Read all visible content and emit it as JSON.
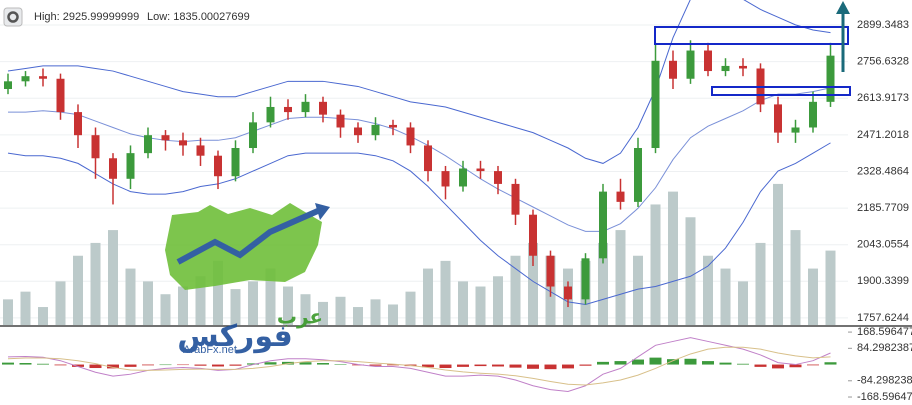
{
  "chart_data": [
    {
      "type": "candlestick",
      "annotations": [
        "High: 2925.99999999",
        "Low: 1835.00027699"
      ],
      "open": [
        2650,
        2680,
        2700,
        2690,
        2560,
        2470,
        2380,
        2300,
        2400,
        2470,
        2450,
        2430,
        2390,
        2310,
        2420,
        2520,
        2580,
        2560,
        2600,
        2550,
        2500,
        2470,
        2510,
        2500,
        2430,
        2330,
        2270,
        2340,
        2330,
        2280,
        2160,
        2000,
        1880,
        1830,
        1990,
        2250,
        2210,
        2420,
        2760,
        2690,
        2800,
        2720,
        2740,
        2730,
        2590,
        2480,
        2500,
        2600
      ],
      "high": [
        2710,
        2720,
        2730,
        2710,
        2590,
        2500,
        2400,
        2430,
        2500,
        2490,
        2480,
        2460,
        2410,
        2450,
        2560,
        2620,
        2610,
        2630,
        2620,
        2570,
        2520,
        2540,
        2530,
        2520,
        2450,
        2350,
        2370,
        2370,
        2350,
        2300,
        2180,
        2020,
        1900,
        2010,
        2280,
        2300,
        2460,
        2830,
        2800,
        2840,
        2830,
        2770,
        2770,
        2750,
        2620,
        2530,
        2640,
        2830
      ],
      "low": [
        2630,
        2660,
        2660,
        2530,
        2420,
        2300,
        2200,
        2260,
        2380,
        2410,
        2390,
        2350,
        2260,
        2290,
        2400,
        2500,
        2530,
        2540,
        2520,
        2460,
        2440,
        2450,
        2470,
        2400,
        2290,
        2220,
        2250,
        2300,
        2240,
        2120,
        1960,
        1840,
        1800,
        1810,
        1970,
        2180,
        2190,
        2400,
        2650,
        2670,
        2700,
        2700,
        2700,
        2560,
        2440,
        2440,
        2480,
        2580
      ],
      "close": [
        2680,
        2700,
        2690,
        2560,
        2470,
        2380,
        2300,
        2400,
        2470,
        2450,
        2430,
        2390,
        2310,
        2420,
        2520,
        2580,
        2560,
        2600,
        2550,
        2500,
        2470,
        2510,
        2500,
        2430,
        2330,
        2270,
        2340,
        2330,
        2280,
        2160,
        2000,
        1880,
        1830,
        1990,
        2250,
        2210,
        2420,
        2760,
        2690,
        2800,
        2720,
        2740,
        2730,
        2590,
        2480,
        2500,
        2600,
        2780
      ],
      "up_color": "#3c9a3c",
      "down_color": "#c83232",
      "volume": {
        "color": "#bccaca",
        "values": [
          1830,
          1860,
          1800,
          1900,
          2000,
          2050,
          2100,
          1950,
          1900,
          1850,
          1880,
          1920,
          1980,
          1870,
          1900,
          1950,
          1880,
          1850,
          1820,
          1840,
          1800,
          1830,
          1810,
          1860,
          1950,
          1980,
          1900,
          1880,
          1920,
          2000,
          2050,
          2000,
          1950,
          1980,
          2050,
          2100,
          2000,
          2200,
          2250,
          2150,
          2000,
          1950,
          1900,
          2050,
          2280,
          2100,
          1950,
          2020
        ]
      },
      "bands": [
        {
          "color": "#4a68d0",
          "values": [
            2720,
            2730,
            2740,
            2740,
            2740,
            2730,
            2720,
            2700,
            2680,
            2660,
            2640,
            2630,
            2620,
            2620,
            2640,
            2660,
            2680,
            2680,
            2680,
            2670,
            2660,
            2640,
            2620,
            2600,
            2590,
            2580,
            2560,
            2540,
            2520,
            2500,
            2480,
            2450,
            2420,
            2380,
            2360,
            2400,
            2500,
            2650,
            2850,
            3000,
            3050,
            3040,
            3000,
            2960,
            2930,
            2900,
            2880,
            2870
          ]
        },
        {
          "color": "#7a90d8",
          "values": [
            2560,
            2560,
            2565,
            2560,
            2550,
            2525,
            2500,
            2475,
            2460,
            2450,
            2445,
            2450,
            2450,
            2460,
            2485,
            2510,
            2535,
            2540,
            2540,
            2535,
            2530,
            2515,
            2495,
            2465,
            2430,
            2390,
            2345,
            2300,
            2260,
            2225,
            2190,
            2155,
            2120,
            2095,
            2095,
            2125,
            2185,
            2265,
            2375,
            2460,
            2505,
            2535,
            2565,
            2605,
            2630,
            2630,
            2640,
            2655
          ]
        },
        {
          "color": "#4a68d0",
          "values": [
            2400,
            2390,
            2390,
            2380,
            2360,
            2320,
            2280,
            2250,
            2240,
            2240,
            2250,
            2270,
            2280,
            2300,
            2330,
            2360,
            2390,
            2400,
            2400,
            2400,
            2400,
            2390,
            2370,
            2330,
            2270,
            2200,
            2130,
            2060,
            2000,
            1950,
            1900,
            1860,
            1820,
            1810,
            1830,
            1850,
            1870,
            1880,
            1900,
            1920,
            1960,
            2030,
            2130,
            2250,
            2330,
            2360,
            2400,
            2440
          ]
        }
      ],
      "ylim": [
        1730,
        2997
      ],
      "yticks": [
        2899.3483,
        2756.6328,
        2613.9173,
        2471.2018,
        2328.4864,
        2185.7709,
        2043.0554,
        1900.3399,
        1757.6244
      ],
      "grid": true
    },
    {
      "type": "bar",
      "values": [
        10,
        8,
        4,
        -4,
        -12,
        -18,
        -20,
        -12,
        -4,
        0,
        -2,
        -6,
        -10,
        -6,
        6,
        12,
        14,
        12,
        8,
        2,
        -4,
        -6,
        -4,
        -8,
        -14,
        -18,
        -12,
        -8,
        -10,
        -16,
        -22,
        -24,
        -20,
        -6,
        14,
        18,
        26,
        36,
        28,
        30,
        18,
        10,
        4,
        -12,
        -20,
        -14,
        -4,
        12
      ],
      "up_color": "#3c9a3c",
      "down_color": "#c83232",
      "lines": [
        {
          "color": "#c080c8",
          "values": [
            40,
            42,
            38,
            20,
            -10,
            -40,
            -60,
            -50,
            -30,
            -20,
            -15,
            -20,
            -30,
            -25,
            0,
            20,
            30,
            30,
            25,
            15,
            0,
            -10,
            -10,
            -20,
            -40,
            -60,
            -60,
            -55,
            -60,
            -80,
            -110,
            -130,
            -140,
            -110,
            -50,
            -20,
            40,
            100,
            120,
            140,
            120,
            100,
            80,
            50,
            10,
            0,
            20,
            60
          ]
        },
        {
          "color": "#d8c08a",
          "values": [
            30,
            34,
            34,
            30,
            20,
            5,
            -15,
            -28,
            -30,
            -28,
            -25,
            -24,
            -25,
            -25,
            -20,
            -10,
            5,
            15,
            20,
            20,
            15,
            8,
            2,
            -5,
            -15,
            -28,
            -38,
            -45,
            -50,
            -58,
            -72,
            -88,
            -102,
            -106,
            -95,
            -80,
            -55,
            -20,
            20,
            55,
            80,
            90,
            90,
            80,
            60,
            45,
            35,
            40
          ]
        }
      ],
      "ylim": [
        -210,
        195
      ],
      "yticks": [
        168.5964775,
        84.2982387,
        -84.2982387,
        -168.596477
      ]
    }
  ],
  "watermark": {
    "line1": "عرب",
    "line2": "فوركس",
    "site": "ArabFx.net"
  }
}
